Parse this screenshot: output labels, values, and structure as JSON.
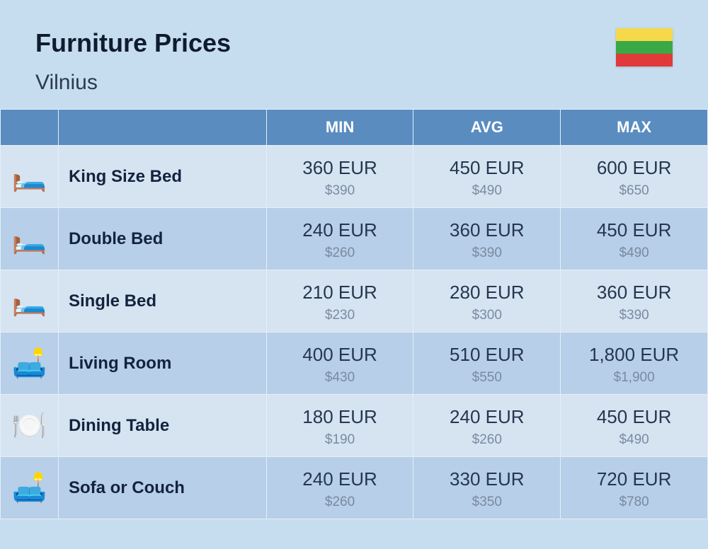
{
  "header": {
    "title": "Furniture Prices",
    "subtitle": "Vilnius",
    "flag_colors": [
      "#f6d94a",
      "#3aa844",
      "#e03a3a"
    ]
  },
  "table": {
    "columns": [
      "MIN",
      "AVG",
      "MAX"
    ],
    "header_bg": "#5a8cc0",
    "header_text_color": "#ffffff",
    "row_odd_bg": "#d6e4f2",
    "row_even_bg": "#b7cfe8",
    "cell_border_color": "#e6eef7",
    "primary_text_color": "#26364f",
    "secondary_text_color": "#7a8aa0",
    "name_text_color": "#14233d",
    "rows": [
      {
        "icon": "🛏️",
        "name": "King Size Bed",
        "min_eur": "360 EUR",
        "min_usd": "$390",
        "avg_eur": "450 EUR",
        "avg_usd": "$490",
        "max_eur": "600 EUR",
        "max_usd": "$650"
      },
      {
        "icon": "🛏️",
        "name": "Double Bed",
        "min_eur": "240 EUR",
        "min_usd": "$260",
        "avg_eur": "360 EUR",
        "avg_usd": "$390",
        "max_eur": "450 EUR",
        "max_usd": "$490"
      },
      {
        "icon": "🛏️",
        "name": "Single Bed",
        "min_eur": "210 EUR",
        "min_usd": "$230",
        "avg_eur": "280 EUR",
        "avg_usd": "$300",
        "max_eur": "360 EUR",
        "max_usd": "$390"
      },
      {
        "icon": "🛋️",
        "name": "Living Room",
        "min_eur": "400 EUR",
        "min_usd": "$430",
        "avg_eur": "510 EUR",
        "avg_usd": "$550",
        "max_eur": "1,800 EUR",
        "max_usd": "$1,900"
      },
      {
        "icon": "🍽️",
        "name": "Dining Table",
        "min_eur": "180 EUR",
        "min_usd": "$190",
        "avg_eur": "240 EUR",
        "avg_usd": "$260",
        "max_eur": "450 EUR",
        "max_usd": "$490"
      },
      {
        "icon": "🛋️",
        "name": "Sofa or Couch",
        "min_eur": "240 EUR",
        "min_usd": "$260",
        "avg_eur": "330 EUR",
        "avg_usd": "$350",
        "max_eur": "720 EUR",
        "max_usd": "$780"
      }
    ]
  }
}
